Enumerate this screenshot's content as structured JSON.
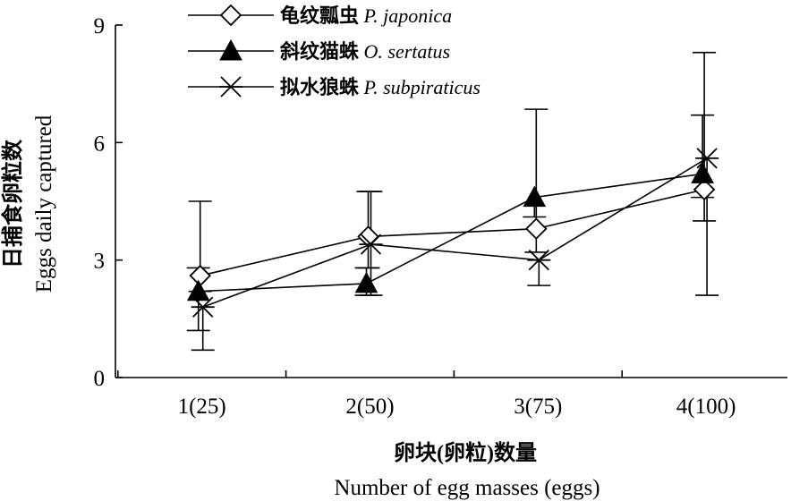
{
  "chart_data": {
    "type": "line",
    "categories": [
      "1(25)",
      "2(50)",
      "3(75)",
      "4(100)"
    ],
    "x": [
      1,
      2,
      3,
      4
    ],
    "xlabel_zh": "卵块(卵粒)数量",
    "xlabel_en": "Number of egg masses (eggs)",
    "ylabel_zh": "日捕食卵粒数",
    "ylabel_en": "Eggs daily captured",
    "ylim": [
      0,
      9
    ],
    "yticks": [
      "0",
      "3",
      "6",
      "9"
    ],
    "grid": false,
    "legend_position": "top-left",
    "series": [
      {
        "name_zh": "龟纹瓢虫",
        "name_latin": "P. japonica",
        "marker": "diamond-open",
        "values": [
          2.6,
          3.6,
          3.8,
          4.8
        ],
        "err_lower": [
          0.4,
          0.8,
          0.6,
          0.8
        ],
        "err_upper": [
          1.9,
          1.15,
          3.05,
          3.5
        ]
      },
      {
        "name_zh": "斜纹猫蛛",
        "name_latin": "O. sertatus",
        "marker": "triangle-filled",
        "values": [
          2.2,
          2.4,
          4.6,
          5.2
        ],
        "err_lower": [
          1.0,
          0.3,
          0.5,
          0.6
        ],
        "err_upper": [
          0.6,
          0.4,
          0.0,
          1.5
        ]
      },
      {
        "name_zh": "拟水狼蛛",
        "name_latin": "P. subpiraticus",
        "marker": "asterisk",
        "values": [
          1.8,
          3.4,
          3.0,
          5.6
        ],
        "err_lower": [
          1.1,
          1.3,
          0.65,
          3.5
        ],
        "err_upper": [
          0.0,
          1.35,
          0.0,
          0.0
        ]
      }
    ]
  }
}
